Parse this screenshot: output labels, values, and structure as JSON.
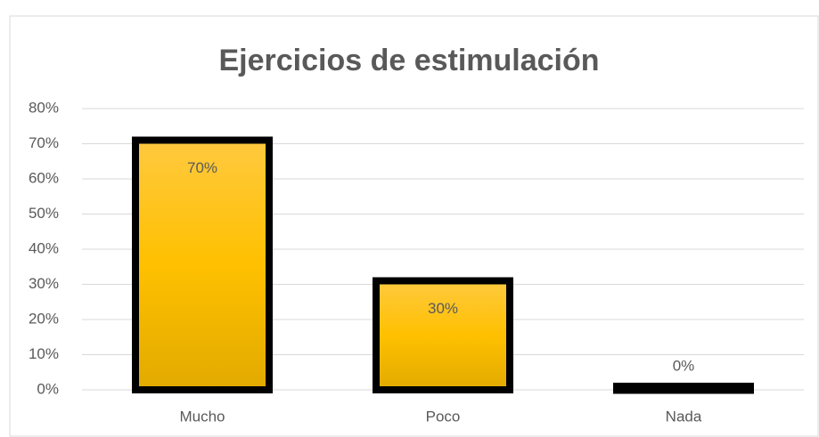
{
  "chart_data": {
    "type": "bar",
    "title": "Ejercicios de estimulación",
    "categories": [
      "Mucho",
      "Poco",
      "Nada"
    ],
    "values": [
      70,
      30,
      0
    ],
    "value_labels": [
      "70%",
      "30%",
      "0%"
    ],
    "color": "#ffc000",
    "ylim": [
      0,
      80
    ],
    "yticks": [
      {
        "value": 0,
        "label": "0%"
      },
      {
        "value": 10,
        "label": "10%"
      },
      {
        "value": 20,
        "label": "20%"
      },
      {
        "value": 30,
        "label": "30%"
      },
      {
        "value": 40,
        "label": "40%"
      },
      {
        "value": 50,
        "label": "50%"
      },
      {
        "value": 60,
        "label": "60%"
      },
      {
        "value": 70,
        "label": "70%"
      },
      {
        "value": 80,
        "label": "80%"
      }
    ],
    "grid": true
  }
}
